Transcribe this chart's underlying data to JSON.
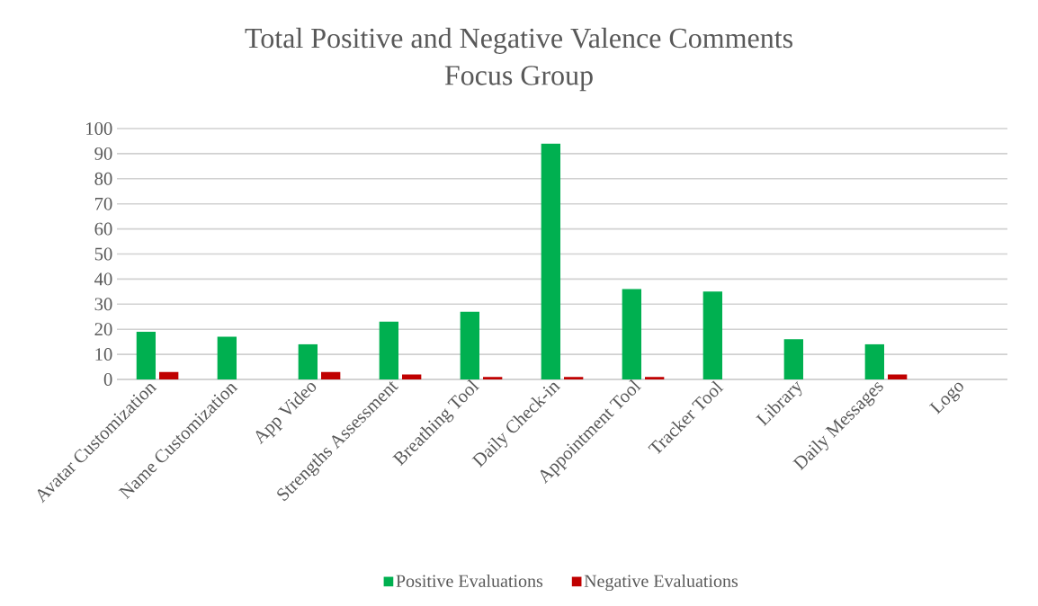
{
  "chart_data": {
    "type": "bar",
    "title": "Total Positive and Negative Valence Comments",
    "subtitle": "Focus Group",
    "categories": [
      "Avatar Customization",
      "Name Customization",
      "App Video",
      "Strengths Assessment",
      "Breathing Tool",
      "Daily Check-in",
      "Appointment Tool",
      "Tracker Tool",
      "Library",
      "Daily Messages",
      "Logo"
    ],
    "series": [
      {
        "name": "Positive Evaluations",
        "color": "#00b050",
        "values": [
          19,
          17,
          14,
          23,
          27,
          94,
          36,
          35,
          16,
          14,
          0
        ]
      },
      {
        "name": "Negative Evaluations",
        "color": "#c00000",
        "values": [
          3,
          0,
          3,
          2,
          1,
          1,
          1,
          0,
          0,
          2,
          0
        ]
      }
    ],
    "ylim": [
      0,
      100
    ],
    "yticks": [
      0,
      10,
      20,
      30,
      40,
      50,
      60,
      70,
      80,
      90,
      100
    ],
    "grid": "y",
    "legend": "bottom"
  }
}
